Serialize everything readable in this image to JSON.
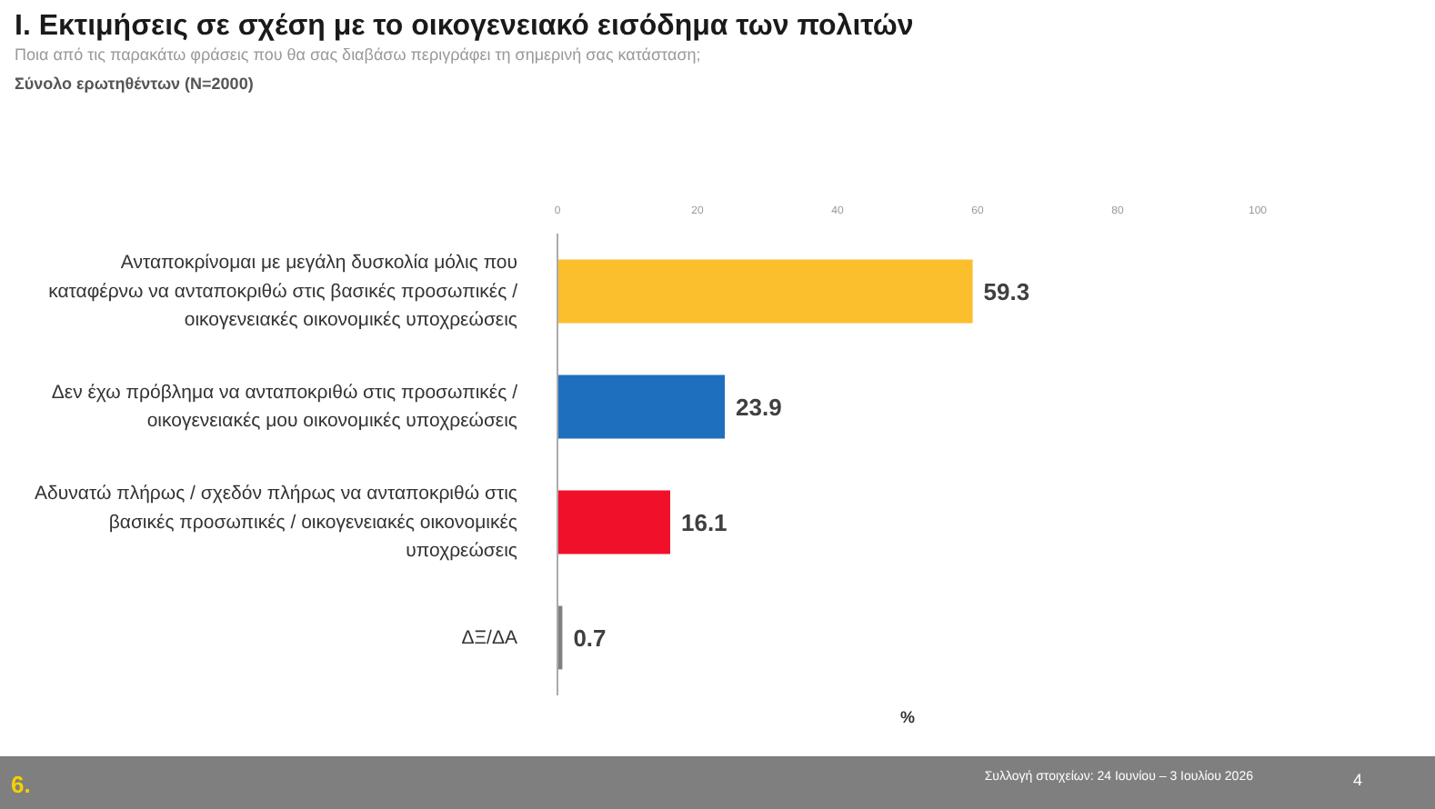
{
  "chart_data": {
    "type": "bar",
    "orientation": "horizontal",
    "title": "I. Εκτιμήσεις σε σχέση με το οικογενειακό εισόδημα των πολιτών",
    "subtitle": "Ποια από τις παρακάτω φράσεις που θα σας διαβάσω περιγράφει τη σημερινή σας κατάσταση;",
    "xlabel": "%",
    "categories": [
      "Ανταποκρίνομαι με μεγάλη δυσκολία μόλις που καταφέρνω να ανταποκριθώ στις βασικές προσωπικές / οικογενειακές οικονομικές υποχρεώσεις",
      "Δεν έχω πρόβλημα να ανταποκριθώ στις προσωπικές / οικογενειακές μου οικονομικές υποχρεώσεις",
      "Αδυνατώ πλήρως / σχεδόν πλήρως να ανταποκριθώ στις βασικές προσωπικές / οικογενειακές οικονομικές υποχρεώσεις",
      "ΔΞ/ΔΑ"
    ],
    "values": [
      59.3,
      23.9,
      16.1,
      0.7
    ],
    "colors": [
      "#fbbf2e",
      "#1f6fbf",
      "#f0102a",
      "#808080"
    ],
    "data_labels": true,
    "xlim": [
      0,
      100
    ],
    "xticks": [
      0,
      20,
      40,
      60,
      80,
      100
    ],
    "tick_labels": "x",
    "grid": false,
    "legend": false,
    "annotations": [
      "Σύνολο ερωτηθέντων (Ν=2000)",
      "6.",
      "Συλλογή στοιχείων: 24 Ιουνίου – 3 Ιουλίου 2026",
      "4"
    ]
  }
}
